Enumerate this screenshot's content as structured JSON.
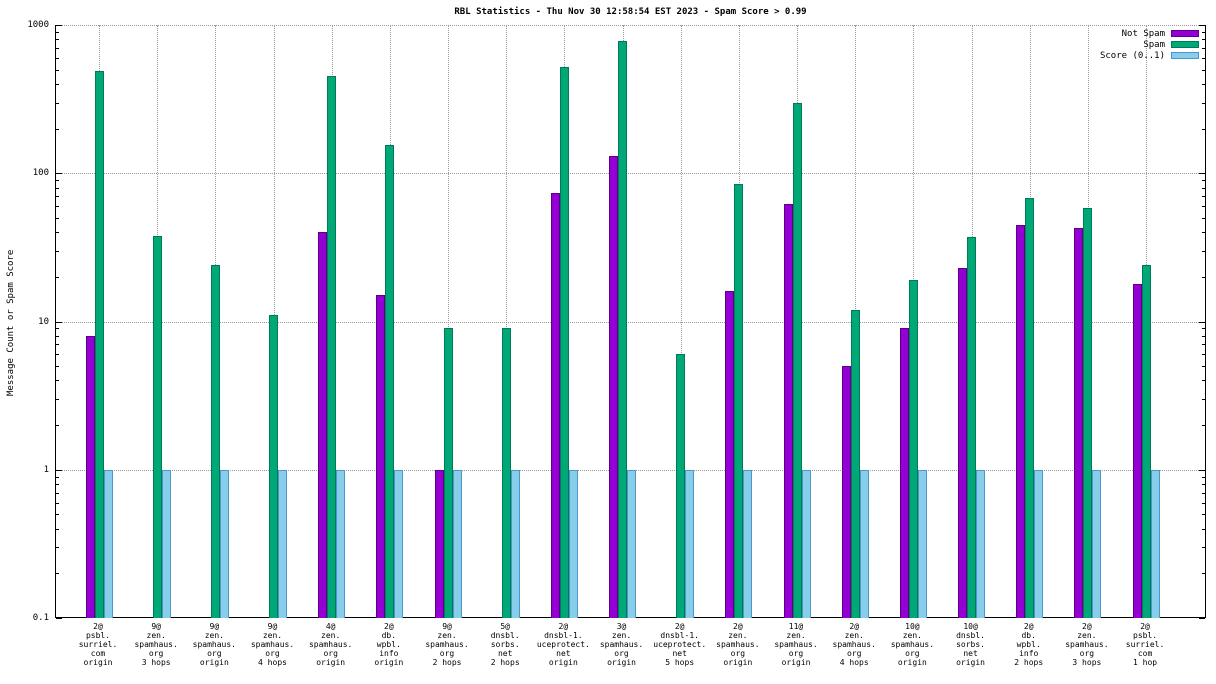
{
  "chart": {
    "title": "RBL Statistics - Thu Nov 30 12:58:54 EST 2023 - Spam Score > 0.99",
    "ylabel": "Message Count or Spam Score"
  },
  "chart_data": {
    "type": "bar",
    "yscale": "log",
    "ylim": [
      0.1,
      1000
    ],
    "yticks": [
      "1000",
      "100",
      "10",
      "1",
      "0.1"
    ],
    "grid": true,
    "legend_position": "top-right",
    "categories": [
      [
        "2@",
        "psbl.",
        "surriel.",
        "com",
        "origin"
      ],
      [
        "9@",
        "zen.",
        "spamhaus.",
        "org",
        "3 hops"
      ],
      [
        "9@",
        "zen.",
        "spamhaus.",
        "org",
        "origin"
      ],
      [
        "9@",
        "zen.",
        "spamhaus.",
        "org",
        "4 hops"
      ],
      [
        "4@",
        "zen.",
        "spamhaus.",
        "org",
        "origin"
      ],
      [
        "2@",
        "db.",
        "wpbl.",
        "info",
        "origin"
      ],
      [
        "9@",
        "zen.",
        "spamhaus.",
        "org",
        "2 hops"
      ],
      [
        "5@",
        "dnsbl.",
        "sorbs.",
        "net",
        "2 hops"
      ],
      [
        "2@",
        "dnsbl-1.",
        "uceprotect.",
        "net",
        "origin"
      ],
      [
        "3@",
        "zen.",
        "spamhaus.",
        "org",
        "origin"
      ],
      [
        "2@",
        "dnsbl-1.",
        "uceprotect.",
        "net",
        "5 hops"
      ],
      [
        "2@",
        "zen.",
        "spamhaus.",
        "org",
        "origin"
      ],
      [
        "11@",
        "zen.",
        "spamhaus.",
        "org",
        "origin"
      ],
      [
        "2@",
        "zen.",
        "spamhaus.",
        "org",
        "4 hops"
      ],
      [
        "10@",
        "zen.",
        "spamhaus.",
        "org",
        "origin"
      ],
      [
        "10@",
        "dnsbl.",
        "sorbs.",
        "net",
        "origin"
      ],
      [
        "2@",
        "db.",
        "wpbl.",
        "info",
        "2 hops"
      ],
      [
        "2@",
        "zen.",
        "spamhaus.",
        "org",
        "3 hops"
      ],
      [
        "2@",
        "psbl.",
        "surriel.",
        "com",
        "1 hop"
      ]
    ],
    "series": [
      {
        "key": "not-spam",
        "name": "Not Spam",
        "color": "#9400d3",
        "border": "#5e0087",
        "values": [
          8,
          null,
          null,
          null,
          40,
          15,
          1,
          null,
          74,
          130,
          null,
          16,
          62,
          5,
          9,
          23,
          45,
          43,
          18
        ]
      },
      {
        "key": "spam",
        "name": "Spam",
        "color": "#00a877",
        "border": "#007a56",
        "values": [
          490,
          38,
          24,
          11,
          450,
          155,
          9,
          9,
          520,
          780,
          6,
          85,
          300,
          12,
          19,
          37,
          68,
          58,
          24
        ]
      },
      {
        "key": "score",
        "name": "Score (0..1)",
        "color": "#87ceeb",
        "border": "#4f94cd",
        "values": [
          1,
          1,
          1,
          1,
          1,
          1,
          1,
          1,
          1,
          1,
          1,
          1,
          1,
          1,
          1,
          1,
          1,
          1,
          1
        ]
      }
    ]
  }
}
